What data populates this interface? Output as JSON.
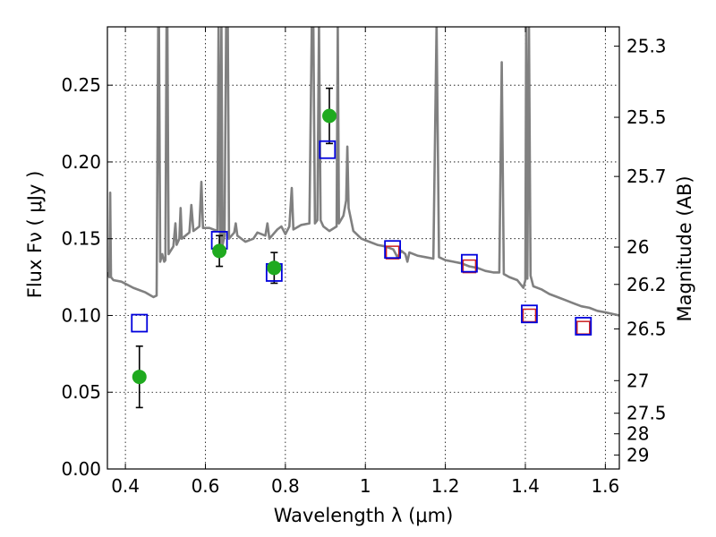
{
  "chart_data": {
    "type": "scatter",
    "xlabel": "Wavelength  λ (μm)",
    "ylabel": "Flux  Fν ( μJy )",
    "ylabel_right": "Magnitude (AB)",
    "xlim": [
      0.355,
      1.635
    ],
    "ylim": [
      0.0,
      0.288
    ],
    "x_ticks": [
      0.4,
      0.6,
      0.8,
      1.0,
      1.2,
      1.4,
      1.6
    ],
    "x_tick_labels": [
      "0.4",
      "0.6",
      "0.8",
      "1",
      "1.2",
      "1.4",
      "1.6"
    ],
    "y_ticks": [
      0.0,
      0.05,
      0.1,
      0.15,
      0.2,
      0.25
    ],
    "y_tick_labels": [
      "0.00",
      "0.05",
      "0.10",
      "0.15",
      "0.20",
      "0.25"
    ],
    "mag_ticks": [
      "25.3",
      "25.5",
      "25.7",
      "26",
      "26.2",
      "26.5",
      "27",
      "27.5",
      "28",
      "29"
    ],
    "grid": true,
    "colors": {
      "spectrum": "#808080",
      "observed": "#1faa1f",
      "model_blue": "#0000dd",
      "model_red": "#cc2222",
      "errorbar": "#000000"
    },
    "observed": [
      {
        "x": 0.435,
        "y": 0.06,
        "err": 0.02
      },
      {
        "x": 0.635,
        "y": 0.142,
        "err": 0.01
      },
      {
        "x": 0.772,
        "y": 0.131,
        "err": 0.01
      },
      {
        "x": 0.91,
        "y": 0.23,
        "err": 0.018
      }
    ],
    "model_blue": [
      {
        "x": 0.435,
        "y": 0.095
      },
      {
        "x": 0.635,
        "y": 0.149
      },
      {
        "x": 0.772,
        "y": 0.128
      },
      {
        "x": 0.905,
        "y": 0.208
      },
      {
        "x": 1.068,
        "y": 0.143
      },
      {
        "x": 1.26,
        "y": 0.134
      },
      {
        "x": 1.41,
        "y": 0.101
      },
      {
        "x": 1.545,
        "y": 0.093
      }
    ],
    "model_red": [
      {
        "x": 1.068,
        "y": 0.141
      },
      {
        "x": 1.26,
        "y": 0.132
      },
      {
        "x": 1.41,
        "y": 0.1
      },
      {
        "x": 1.545,
        "y": 0.092
      }
    ],
    "spectrum": [
      [
        0.355,
        0.128
      ],
      [
        0.36,
        0.125
      ],
      [
        0.362,
        0.18
      ],
      [
        0.364,
        0.125
      ],
      [
        0.37,
        0.123
      ],
      [
        0.39,
        0.122
      ],
      [
        0.42,
        0.118
      ],
      [
        0.45,
        0.115
      ],
      [
        0.47,
        0.112
      ],
      [
        0.478,
        0.113
      ],
      [
        0.482,
        0.29
      ],
      [
        0.484,
        0.29
      ],
      [
        0.487,
        0.135
      ],
      [
        0.492,
        0.14
      ],
      [
        0.497,
        0.135
      ],
      [
        0.5,
        0.136
      ],
      [
        0.503,
        0.29
      ],
      [
        0.505,
        0.29
      ],
      [
        0.508,
        0.14
      ],
      [
        0.52,
        0.145
      ],
      [
        0.525,
        0.16
      ],
      [
        0.528,
        0.146
      ],
      [
        0.535,
        0.15
      ],
      [
        0.538,
        0.17
      ],
      [
        0.541,
        0.15
      ],
      [
        0.56,
        0.154
      ],
      [
        0.565,
        0.172
      ],
      [
        0.57,
        0.155
      ],
      [
        0.585,
        0.158
      ],
      [
        0.59,
        0.187
      ],
      [
        0.594,
        0.157
      ],
      [
        0.61,
        0.157
      ],
      [
        0.63,
        0.155
      ],
      [
        0.633,
        0.29
      ],
      [
        0.637,
        0.145
      ],
      [
        0.64,
        0.29
      ],
      [
        0.643,
        0.146
      ],
      [
        0.648,
        0.152
      ],
      [
        0.652,
        0.29
      ],
      [
        0.656,
        0.29
      ],
      [
        0.659,
        0.15
      ],
      [
        0.672,
        0.154
      ],
      [
        0.676,
        0.16
      ],
      [
        0.68,
        0.152
      ],
      [
        0.7,
        0.148
      ],
      [
        0.72,
        0.15
      ],
      [
        0.73,
        0.154
      ],
      [
        0.75,
        0.152
      ],
      [
        0.755,
        0.16
      ],
      [
        0.76,
        0.15
      ],
      [
        0.78,
        0.156
      ],
      [
        0.79,
        0.158
      ],
      [
        0.8,
        0.153
      ],
      [
        0.81,
        0.158
      ],
      [
        0.816,
        0.183
      ],
      [
        0.82,
        0.156
      ],
      [
        0.84,
        0.159
      ],
      [
        0.86,
        0.16
      ],
      [
        0.866,
        0.29
      ],
      [
        0.87,
        0.29
      ],
      [
        0.874,
        0.16
      ],
      [
        0.88,
        0.162
      ],
      [
        0.884,
        0.29
      ],
      [
        0.888,
        0.162
      ],
      [
        0.895,
        0.158
      ],
      [
        0.91,
        0.155
      ],
      [
        0.928,
        0.158
      ],
      [
        0.931,
        0.29
      ],
      [
        0.934,
        0.16
      ],
      [
        0.945,
        0.165
      ],
      [
        0.952,
        0.175
      ],
      [
        0.955,
        0.21
      ],
      [
        0.958,
        0.17
      ],
      [
        0.97,
        0.155
      ],
      [
        0.99,
        0.15
      ],
      [
        1.01,
        0.148
      ],
      [
        1.03,
        0.146
      ],
      [
        1.05,
        0.145
      ],
      [
        1.07,
        0.143
      ],
      [
        1.08,
        0.138
      ],
      [
        1.09,
        0.142
      ],
      [
        1.1,
        0.14
      ],
      [
        1.105,
        0.135
      ],
      [
        1.11,
        0.141
      ],
      [
        1.13,
        0.139
      ],
      [
        1.15,
        0.138
      ],
      [
        1.17,
        0.137
      ],
      [
        1.178,
        0.29
      ],
      [
        1.184,
        0.138
      ],
      [
        1.2,
        0.136
      ],
      [
        1.22,
        0.135
      ],
      [
        1.24,
        0.134
      ],
      [
        1.26,
        0.132
      ],
      [
        1.28,
        0.131
      ],
      [
        1.3,
        0.129
      ],
      [
        1.32,
        0.128
      ],
      [
        1.335,
        0.128
      ],
      [
        1.341,
        0.265
      ],
      [
        1.346,
        0.127
      ],
      [
        1.36,
        0.125
      ],
      [
        1.38,
        0.123
      ],
      [
        1.395,
        0.118
      ],
      [
        1.4,
        0.123
      ],
      [
        1.402,
        0.29
      ],
      [
        1.405,
        0.124
      ],
      [
        1.409,
        0.29
      ],
      [
        1.413,
        0.126
      ],
      [
        1.42,
        0.119
      ],
      [
        1.44,
        0.117
      ],
      [
        1.46,
        0.114
      ],
      [
        1.48,
        0.112
      ],
      [
        1.5,
        0.11
      ],
      [
        1.52,
        0.108
      ],
      [
        1.54,
        0.106
      ],
      [
        1.56,
        0.105
      ],
      [
        1.58,
        0.103
      ],
      [
        1.6,
        0.102
      ],
      [
        1.635,
        0.1
      ]
    ]
  }
}
